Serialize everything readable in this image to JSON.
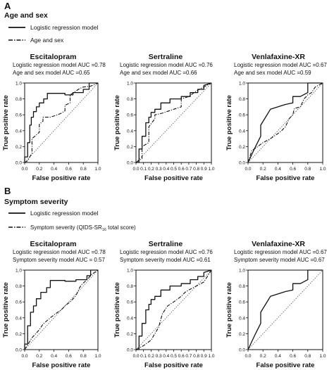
{
  "sections": [
    {
      "letter": "A",
      "title": "Age and sex",
      "legend": [
        {
          "label": "Logistic regression model",
          "style": "solid"
        },
        {
          "label": "Age and sex",
          "style": "dashdot"
        }
      ]
    },
    {
      "letter": "B",
      "title": "Symptom severity",
      "legend": [
        {
          "label": "Logistic regression model",
          "style": "solid"
        },
        {
          "label": "Symptom severity (QIDS-SR",
          "sub": "16",
          "after": " total score)",
          "style": "dashdot"
        }
      ]
    }
  ],
  "chart_data": [
    {
      "type": "line",
      "panel": "A",
      "title": "Escitalopram",
      "annotations": [
        "Logistic regression model AUC =0.78",
        "Age and sex model AUC =0.65"
      ],
      "xlabel": "False positive rate",
      "ylabel": "True positive rate",
      "xlim": [
        0,
        1
      ],
      "ylim": [
        0,
        1
      ],
      "xticks": [
        "0.0",
        "0.2",
        "0.4",
        "0.6",
        "0.8",
        "1.0"
      ],
      "yticks": [
        "0.0",
        "0.2",
        "0.4",
        "0.6",
        "0.8",
        "1.0"
      ],
      "diagonal": true,
      "series": [
        {
          "name": "Logistic regression model",
          "style": "solid",
          "x": [
            0,
            0,
            0.04,
            0.04,
            0.07,
            0.07,
            0.09,
            0.09,
            0.12,
            0.12,
            0.16,
            0.16,
            0.2,
            0.2,
            0.26,
            0.26,
            0.31,
            0.31,
            0.55,
            0.55,
            0.66,
            0.66,
            0.8,
            0.8,
            0.88,
            0.88,
            1
          ],
          "y": [
            0,
            0.07,
            0.07,
            0.25,
            0.25,
            0.47,
            0.47,
            0.57,
            0.57,
            0.64,
            0.64,
            0.7,
            0.7,
            0.75,
            0.75,
            0.8,
            0.8,
            0.87,
            0.87,
            0.85,
            0.85,
            0.88,
            0.88,
            0.92,
            0.92,
            1,
            1
          ]
        },
        {
          "name": "Age and sex",
          "style": "dashdot",
          "x": [
            0,
            0.04,
            0.1,
            0.1,
            0.2,
            0.2,
            0.25,
            0.25,
            0.35,
            0.45,
            0.5,
            0.55,
            0.55,
            0.62,
            0.62,
            0.7,
            0.75,
            0.8,
            0.9,
            1
          ],
          "y": [
            0,
            0.02,
            0.12,
            0.3,
            0.38,
            0.48,
            0.52,
            0.57,
            0.57,
            0.6,
            0.62,
            0.65,
            0.72,
            0.75,
            0.85,
            0.9,
            0.93,
            0.95,
            0.96,
            1
          ]
        }
      ]
    },
    {
      "type": "line",
      "panel": "A",
      "title": "Sertraline",
      "annotations": [
        "Logistic regression model AUC =0.76",
        "Age and sex model AUC =0.66"
      ],
      "xlabel": "False positive rate",
      "ylabel": "True positive rate",
      "xlim": [
        0,
        1
      ],
      "ylim": [
        0,
        1
      ],
      "xticks": [
        "0.0",
        "0.1",
        "0.2",
        "0.3",
        "0.4",
        "0.5",
        "0.6",
        "0.7",
        "0.8",
        "0.9",
        "1.0"
      ],
      "yticks": [
        "0.0",
        "0.2",
        "0.4",
        "0.6",
        "0.8",
        "1.0"
      ],
      "diagonal": true,
      "series": [
        {
          "name": "Logistic regression model",
          "style": "solid",
          "x": [
            0,
            0.04,
            0.04,
            0.08,
            0.08,
            0.13,
            0.13,
            0.17,
            0.17,
            0.2,
            0.2,
            0.25,
            0.25,
            0.33,
            0.33,
            0.45,
            0.45,
            0.6,
            0.6,
            0.72,
            0.72,
            0.82,
            0.82,
            0.9,
            0.9,
            1
          ],
          "y": [
            0,
            0,
            0.17,
            0.17,
            0.33,
            0.33,
            0.5,
            0.5,
            0.57,
            0.57,
            0.63,
            0.63,
            0.67,
            0.67,
            0.75,
            0.75,
            0.8,
            0.8,
            0.83,
            0.83,
            0.88,
            0.88,
            0.92,
            0.92,
            0.97,
            1
          ]
        },
        {
          "name": "Age and sex",
          "style": "dashdot",
          "x": [
            0,
            0.08,
            0.08,
            0.17,
            0.17,
            0.25,
            0.25,
            0.35,
            0.5,
            0.6,
            0.6,
            0.7,
            0.8,
            0.9,
            1
          ],
          "y": [
            0,
            0.05,
            0.2,
            0.25,
            0.45,
            0.55,
            0.6,
            0.62,
            0.67,
            0.7,
            0.8,
            0.83,
            0.9,
            0.95,
            1
          ]
        }
      ]
    },
    {
      "type": "line",
      "panel": "A",
      "title": "Venlafaxine-XR",
      "annotations": [
        "Logistic regression model AUC =0.67",
        "Age and sex model AUC =0.59"
      ],
      "xlabel": "False positive rate",
      "ylabel": "True positive rate",
      "xlim": [
        0,
        1
      ],
      "ylim": [
        0,
        1
      ],
      "xticks": [
        "0.0",
        "0.2",
        "0.4",
        "0.6",
        "0.8",
        "1.0"
      ],
      "yticks": [
        "0.0",
        "0.2",
        "0.4",
        "0.6",
        "0.8",
        "1.0"
      ],
      "diagonal": true,
      "series": [
        {
          "name": "Logistic regression model",
          "style": "solid",
          "x": [
            0,
            0.1,
            0.17,
            0.17,
            0.3,
            0.5,
            0.6,
            0.6,
            0.7,
            0.8,
            0.8,
            1
          ],
          "y": [
            0,
            0.2,
            0.33,
            0.47,
            0.67,
            0.73,
            0.75,
            0.83,
            0.83,
            0.88,
            1,
            1
          ]
        },
        {
          "name": "Age and sex",
          "style": "dashdot",
          "x": [
            0,
            0.05,
            0.1,
            0.2,
            0.3,
            0.38,
            0.45,
            0.5,
            0.55,
            0.6,
            0.62,
            0.7,
            0.75,
            0.8,
            0.85,
            0.9,
            1
          ],
          "y": [
            0,
            0.15,
            0.18,
            0.25,
            0.3,
            0.35,
            0.4,
            0.45,
            0.55,
            0.6,
            0.68,
            0.7,
            0.8,
            0.85,
            0.88,
            0.95,
            1
          ]
        }
      ]
    },
    {
      "type": "line",
      "panel": "B",
      "title": "Escitalopram",
      "annotations": [
        "Logistic regression model AUC =0.78",
        "Symptom severity model AUC = 0.57"
      ],
      "xlabel": "False positive rate",
      "ylabel": "True positive rate",
      "xlim": [
        0,
        1
      ],
      "ylim": [
        0,
        1
      ],
      "xticks": [
        "0.0",
        "0.2",
        "0.4",
        "0.6",
        "0.8",
        "1.0"
      ],
      "yticks": [
        "0.0",
        "0.2",
        "0.4",
        "0.6",
        "0.8",
        "1.0"
      ],
      "diagonal": true,
      "series": [
        {
          "name": "Logistic regression model",
          "style": "solid",
          "x": [
            0,
            0,
            0.04,
            0.04,
            0.08,
            0.08,
            0.12,
            0.12,
            0.16,
            0.16,
            0.22,
            0.22,
            0.3,
            0.3,
            0.35,
            0.35,
            0.55,
            0.55,
            0.7,
            0.7,
            0.85,
            0.85,
            0.9,
            0.9,
            1
          ],
          "y": [
            0,
            0.07,
            0.07,
            0.3,
            0.3,
            0.47,
            0.47,
            0.55,
            0.55,
            0.64,
            0.64,
            0.72,
            0.72,
            0.78,
            0.78,
            0.87,
            0.87,
            0.86,
            0.86,
            0.88,
            0.88,
            0.93,
            0.93,
            1,
            1
          ]
        },
        {
          "name": "Symptom severity (QIDS-SR16 total score)",
          "style": "dashdot",
          "x": [
            0,
            0.1,
            0.2,
            0.25,
            0.35,
            0.42,
            0.5,
            0.55,
            0.62,
            0.7,
            0.75,
            0.78,
            0.85,
            0.92,
            1
          ],
          "y": [
            0,
            0.15,
            0.25,
            0.32,
            0.4,
            0.45,
            0.5,
            0.55,
            0.6,
            0.68,
            0.78,
            0.82,
            0.88,
            0.95,
            1
          ]
        }
      ]
    },
    {
      "type": "line",
      "panel": "B",
      "title": "Sertraline",
      "annotations": [
        "Logistic regression model AUC =0.76",
        "Symptom severity model AUC =0.61"
      ],
      "xlabel": "False positive rate",
      "ylabel": "True positive rate",
      "xlim": [
        0,
        1
      ],
      "ylim": [
        0,
        1
      ],
      "xticks": [
        "0.0",
        "0.1",
        "0.2",
        "0.3",
        "0.4",
        "0.5",
        "0.6",
        "0.7",
        "0.8",
        "0.9",
        "1.0"
      ],
      "yticks": [
        "0.0",
        "0.2",
        "0.4",
        "0.6",
        "0.8",
        "1.0"
      ],
      "diagonal": true,
      "series": [
        {
          "name": "Logistic regression model",
          "style": "solid",
          "x": [
            0,
            0.04,
            0.04,
            0.08,
            0.08,
            0.13,
            0.13,
            0.17,
            0.17,
            0.2,
            0.2,
            0.25,
            0.25,
            0.33,
            0.33,
            0.45,
            0.45,
            0.6,
            0.6,
            0.72,
            0.72,
            0.82,
            0.82,
            0.9,
            0.9,
            1
          ],
          "y": [
            0,
            0,
            0.17,
            0.17,
            0.33,
            0.33,
            0.5,
            0.5,
            0.57,
            0.57,
            0.63,
            0.63,
            0.67,
            0.67,
            0.75,
            0.75,
            0.8,
            0.8,
            0.83,
            0.83,
            0.88,
            0.88,
            0.92,
            0.92,
            0.97,
            1
          ]
        },
        {
          "name": "Symptom severity (QIDS-SR16 total score)",
          "style": "dashdot",
          "x": [
            0,
            0.1,
            0.2,
            0.3,
            0.35,
            0.42,
            0.5,
            0.6,
            0.65,
            0.7,
            0.8,
            0.9,
            1
          ],
          "y": [
            0,
            0.05,
            0.12,
            0.28,
            0.45,
            0.55,
            0.6,
            0.67,
            0.72,
            0.75,
            0.8,
            0.85,
            1
          ]
        }
      ]
    },
    {
      "type": "line",
      "panel": "B",
      "title": "Venlafaxine-XR",
      "annotations": [
        "Logistic regression model AUC =0.67",
        "Symptom severity model AUC =0.67"
      ],
      "xlabel": "False positive rate",
      "ylabel": "True positive rate",
      "xlim": [
        0,
        1
      ],
      "ylim": [
        0,
        1
      ],
      "xticks": [
        "0.0",
        "0.2",
        "0.4",
        "0.6",
        "0.8",
        "1.0"
      ],
      "yticks": [
        "0.0",
        "0.2",
        "0.4",
        "0.6",
        "0.8",
        "1.0"
      ],
      "diagonal": true,
      "series": [
        {
          "name": "Logistic regression model",
          "style": "solid",
          "x": [
            0,
            0.1,
            0.17,
            0.17,
            0.3,
            0.5,
            0.6,
            0.6,
            0.7,
            0.8,
            0.8,
            1
          ],
          "y": [
            0,
            0.2,
            0.33,
            0.47,
            0.67,
            0.73,
            0.75,
            0.83,
            0.83,
            0.88,
            1,
            1
          ]
        }
      ]
    }
  ]
}
